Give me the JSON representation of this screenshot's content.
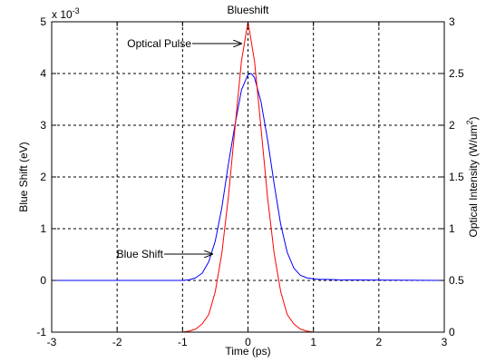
{
  "chart_data": {
    "type": "line",
    "title": "Blueshift",
    "xlabel": "Time (ps)",
    "ylabel_left": "Blue Shift (eV)",
    "ylabel_right_main": "Optical Intensity (W/um",
    "ylabel_right_sup": "2",
    "ylabel_right_close": ")",
    "left_axis_exponent_base": "x 10",
    "left_axis_exponent_power": "-3",
    "xlim": [
      -3,
      3
    ],
    "ylim_left": [
      -1,
      5
    ],
    "ylim_right": [
      0,
      3
    ],
    "grid": true,
    "x_ticks": [
      "-3",
      "-2",
      "-1",
      "0",
      "1",
      "2",
      "3"
    ],
    "y_left_ticks": [
      "-1",
      "0",
      "1",
      "2",
      "3",
      "4",
      "5"
    ],
    "y_right_ticks": [
      "0",
      "0.5",
      "1",
      "1.5",
      "2",
      "2.5",
      "3"
    ],
    "series": [
      {
        "name": "Blue Shift",
        "axis": "left",
        "color": "#0000ff",
        "x": [
          -3.0,
          -1.0,
          -0.9,
          -0.8,
          -0.7,
          -0.6,
          -0.5,
          -0.4,
          -0.3,
          -0.2,
          -0.1,
          0.0,
          0.05,
          0.1,
          0.2,
          0.3,
          0.4,
          0.5,
          0.6,
          0.7,
          0.8,
          0.9,
          1.0,
          1.1,
          1.2,
          1.4,
          3.0
        ],
        "y": [
          0.0,
          0.0,
          0.01,
          0.05,
          0.14,
          0.36,
          0.76,
          1.4,
          2.24,
          3.0,
          3.68,
          3.98,
          4.0,
          3.92,
          3.45,
          2.72,
          1.86,
          1.08,
          0.54,
          0.24,
          0.1,
          0.05,
          0.03,
          0.02,
          0.02,
          0.01,
          0.0
        ]
      },
      {
        "name": "Optical Pulse",
        "axis": "right",
        "color": "#ff0000",
        "x": [
          -2.15,
          -1.0,
          -0.9,
          -0.8,
          -0.7,
          -0.6,
          -0.5,
          -0.4,
          -0.3,
          -0.2,
          -0.1,
          0.0,
          0.1,
          0.2,
          0.3,
          0.4,
          0.5,
          0.6,
          0.7,
          0.8,
          0.9,
          1.0,
          2.15
        ],
        "y": [
          0.0,
          0.0,
          0.01,
          0.03,
          0.08,
          0.17,
          0.39,
          0.76,
          1.3,
          1.97,
          2.62,
          3.0,
          2.62,
          1.97,
          1.3,
          0.76,
          0.39,
          0.17,
          0.08,
          0.03,
          0.01,
          0.0,
          0.0
        ]
      }
    ],
    "annotations": [
      {
        "text": "Optical Pulse",
        "target_x": -0.05,
        "target_y_right": 2.85,
        "axis": "right"
      },
      {
        "text": "Blue Shift",
        "target_x": -0.5,
        "target_y_left": 0.5,
        "axis": "left"
      }
    ]
  }
}
